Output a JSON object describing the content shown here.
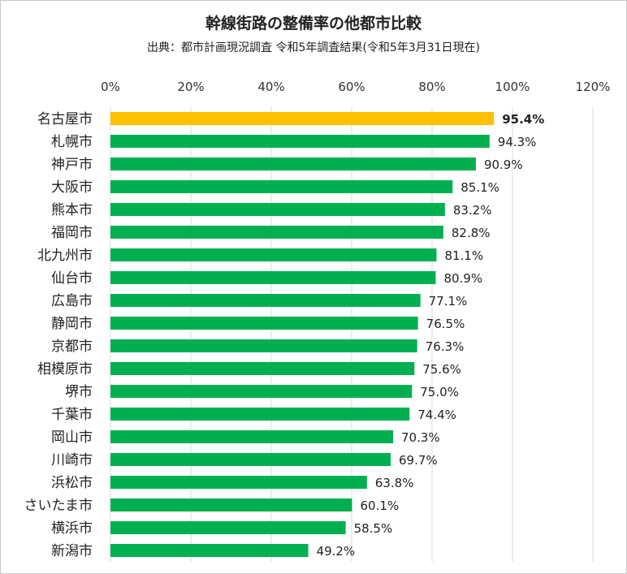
{
  "chart_data": {
    "type": "bar",
    "orientation": "horizontal",
    "title": "幹線街路の整備率の他都市比較",
    "subtitle": "出典：都市計画現況調査 令和5年調査結果(令和5年3月31日現在)",
    "xlabel": "",
    "ylabel": "",
    "xlim": [
      0,
      120
    ],
    "x_ticks": [
      0,
      20,
      40,
      60,
      80,
      100,
      120
    ],
    "x_tick_labels": [
      "0%",
      "20%",
      "40%",
      "60%",
      "80%",
      "100%",
      "120%"
    ],
    "grid": true,
    "categories": [
      "名古屋市",
      "札幌市",
      "神戸市",
      "大阪市",
      "熊本市",
      "福岡市",
      "北九州市",
      "仙台市",
      "広島市",
      "静岡市",
      "京都市",
      "相模原市",
      "堺市",
      "千葉市",
      "岡山市",
      "川崎市",
      "浜松市",
      "さいたま市",
      "横浜市",
      "新潟市"
    ],
    "values": [
      95.4,
      94.3,
      90.9,
      85.1,
      83.2,
      82.8,
      81.1,
      80.9,
      77.1,
      76.5,
      76.3,
      75.6,
      75.0,
      74.4,
      70.3,
      69.7,
      63.8,
      60.1,
      58.5,
      49.2
    ],
    "value_labels": [
      "95.4%",
      "94.3%",
      "90.9%",
      "85.1%",
      "83.2%",
      "82.8%",
      "81.1%",
      "80.9%",
      "77.1%",
      "76.5%",
      "76.3%",
      "75.6%",
      "75.0%",
      "74.4%",
      "70.3%",
      "69.7%",
      "63.8%",
      "60.1%",
      "58.5%",
      "49.2%"
    ],
    "highlight_index": 0,
    "colors": {
      "highlight": "#FFC000",
      "default": "#00B050",
      "grid": "#d9d9d9"
    }
  }
}
